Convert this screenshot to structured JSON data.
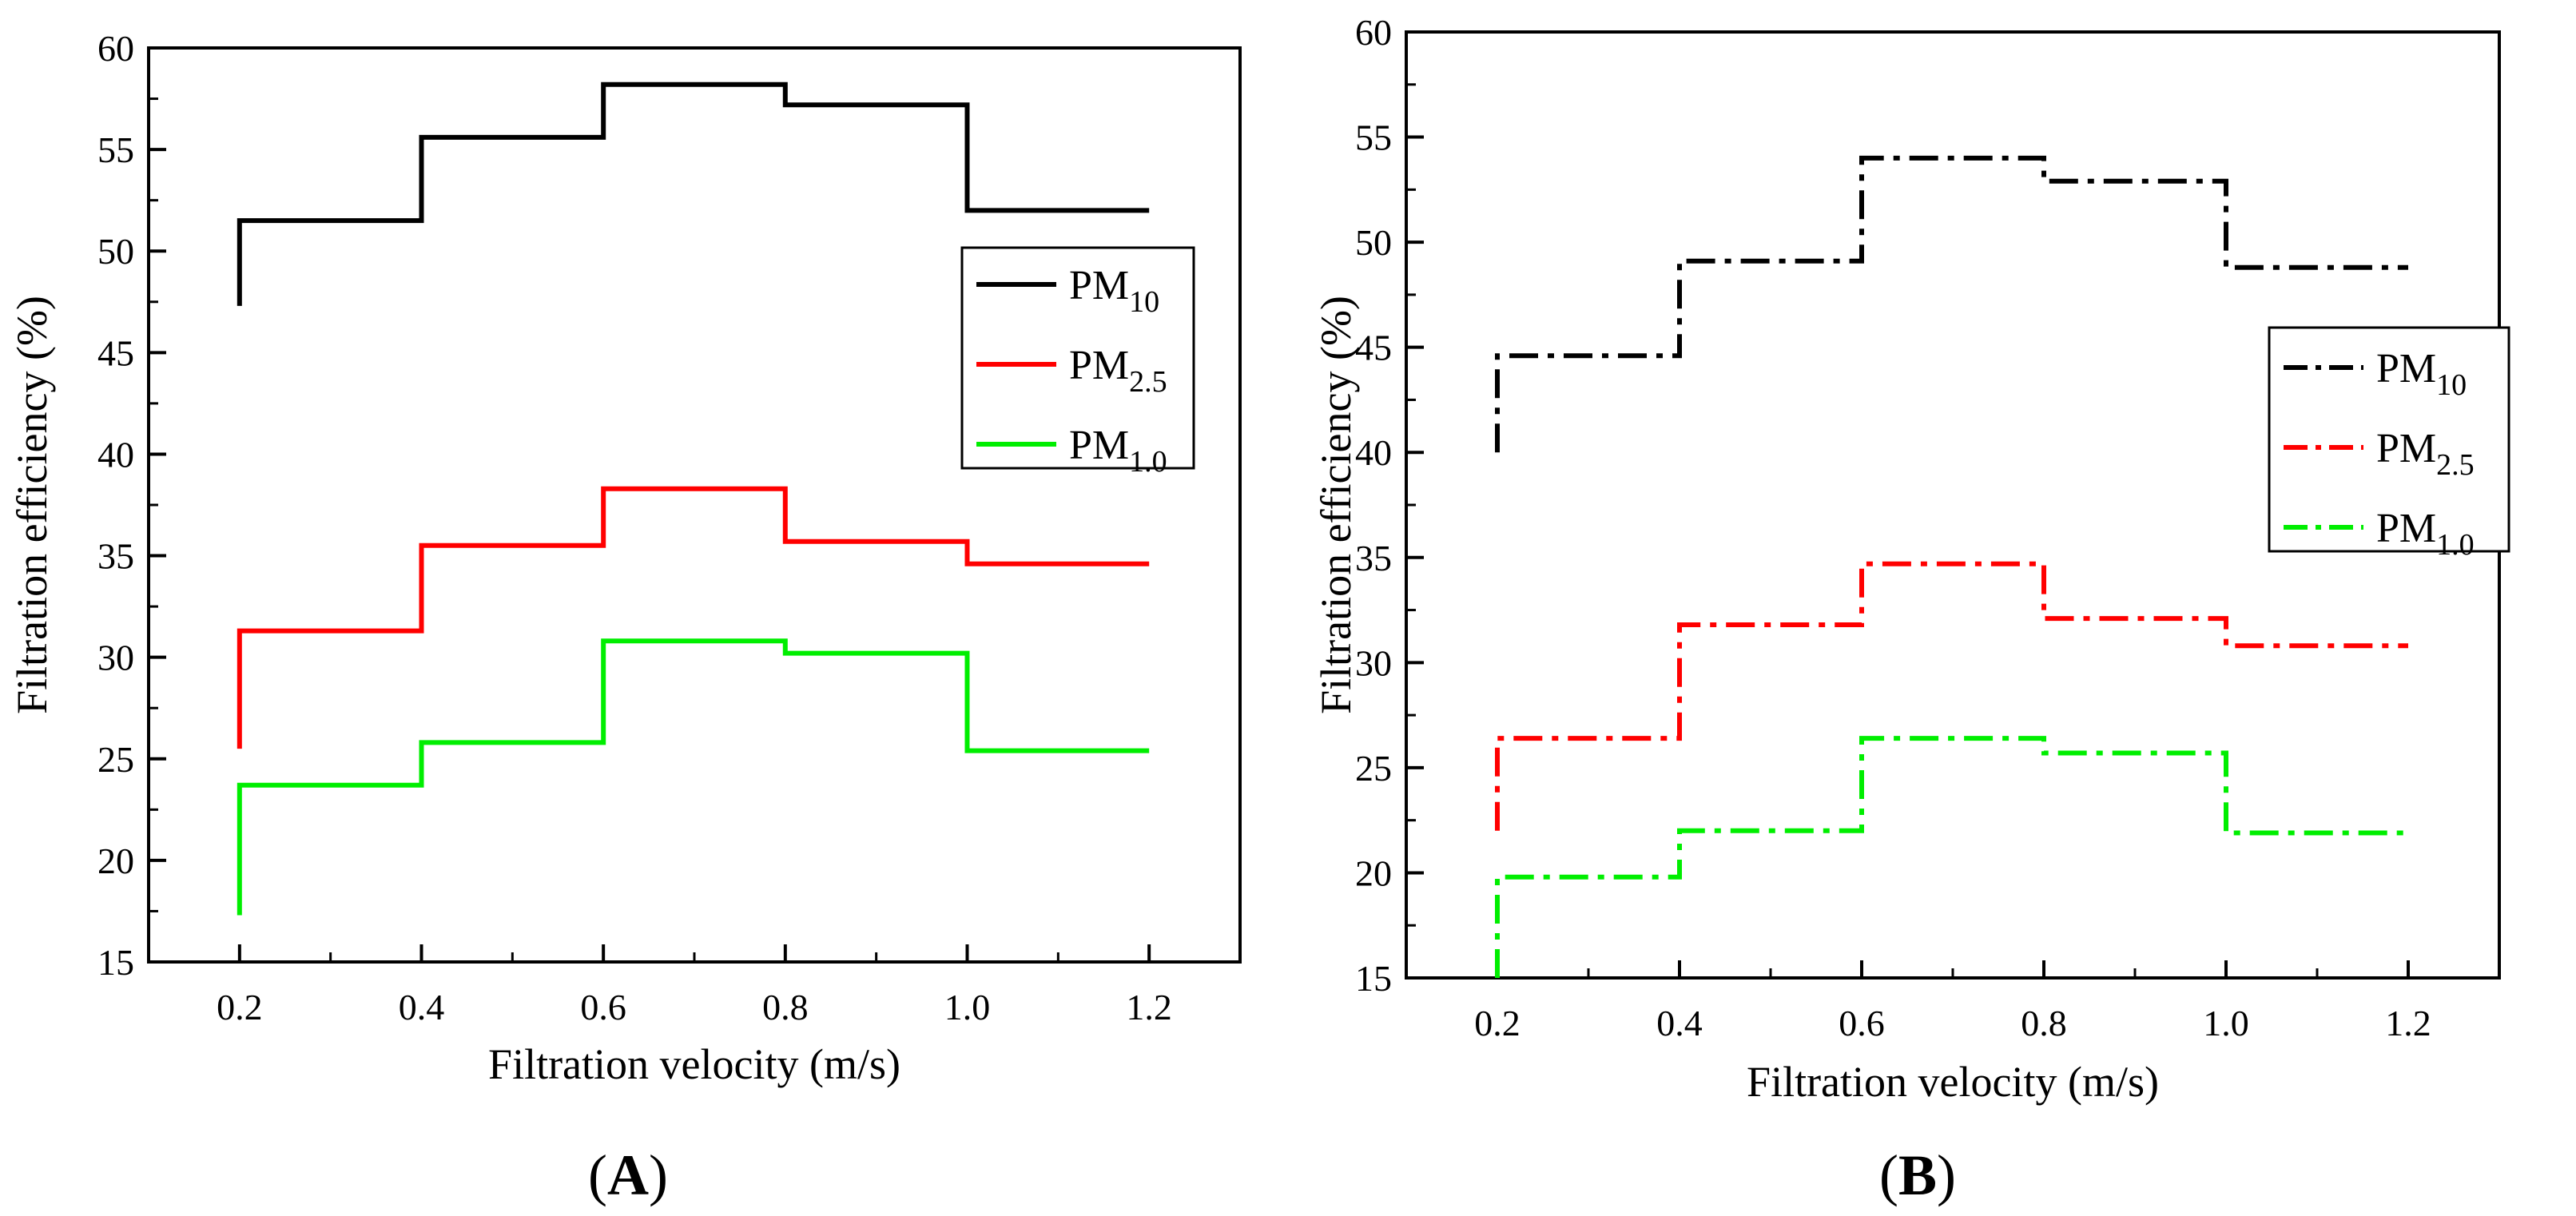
{
  "chart_data": [
    {
      "type": "line",
      "panel_label": "A",
      "xlabel": "Filtration velocity (m/s)",
      "ylabel": "Filtration efficiency (%)",
      "xlim": [
        0.1,
        1.3
      ],
      "ylim": [
        15,
        60
      ],
      "xticks": [
        0.2,
        0.4,
        0.6,
        0.8,
        1.0,
        1.2
      ],
      "xtick_labels": [
        "0.2",
        "0.4",
        "0.6",
        "0.8",
        "1.0",
        "1.2"
      ],
      "yticks": [
        15,
        20,
        25,
        30,
        35,
        40,
        45,
        50,
        55,
        60
      ],
      "ytick_labels": [
        "15",
        "20",
        "25",
        "30",
        "35",
        "40",
        "45",
        "50",
        "55",
        "60"
      ],
      "line_style": "solid",
      "legend_position": "right",
      "series": [
        {
          "name": "PM",
          "sub": "10",
          "color": "#000000",
          "x": [
            0.2,
            0.2,
            0.4,
            0.4,
            0.6,
            0.6,
            0.8,
            0.8,
            1.0,
            1.0,
            1.2
          ],
          "y": [
            47.3,
            51.5,
            51.5,
            55.6,
            55.6,
            58.2,
            58.2,
            57.2,
            57.2,
            52.0,
            52.0
          ]
        },
        {
          "name": "PM",
          "sub": "2.5",
          "color": "#ff0000",
          "x": [
            0.2,
            0.2,
            0.4,
            0.4,
            0.6,
            0.6,
            0.8,
            0.8,
            1.0,
            1.0,
            1.2
          ],
          "y": [
            25.5,
            31.3,
            31.3,
            35.5,
            35.5,
            38.3,
            38.3,
            35.7,
            35.7,
            34.6,
            34.6
          ]
        },
        {
          "name": "PM",
          "sub": "1.0",
          "color": "#00ee00",
          "x": [
            0.2,
            0.2,
            0.4,
            0.4,
            0.6,
            0.6,
            0.8,
            0.8,
            1.0,
            1.0,
            1.2
          ],
          "y": [
            17.3,
            23.7,
            23.7,
            25.8,
            25.8,
            30.8,
            30.8,
            30.2,
            30.2,
            25.4,
            25.4
          ]
        }
      ]
    },
    {
      "type": "line",
      "panel_label": "B",
      "xlabel": "Filtration velocity (m/s)",
      "ylabel": "Filtration efficiency (%)",
      "xlim": [
        0.1,
        1.3
      ],
      "ylim": [
        15,
        60
      ],
      "xticks": [
        0.2,
        0.4,
        0.6,
        0.8,
        1.0,
        1.2
      ],
      "xtick_labels": [
        "0.2",
        "0.4",
        "0.6",
        "0.8",
        "1.0",
        "1.2"
      ],
      "yticks": [
        15,
        20,
        25,
        30,
        35,
        40,
        45,
        50,
        55,
        60
      ],
      "ytick_labels": [
        "15",
        "20",
        "25",
        "30",
        "35",
        "40",
        "45",
        "50",
        "55",
        "60"
      ],
      "line_style": "dash-dot",
      "legend_position": "right",
      "series": [
        {
          "name": "PM",
          "sub": "10",
          "color": "#000000",
          "x": [
            0.2,
            0.2,
            0.4,
            0.4,
            0.6,
            0.6,
            0.8,
            0.8,
            1.0,
            1.0,
            1.2
          ],
          "y": [
            40.0,
            44.6,
            44.6,
            49.1,
            49.1,
            54.0,
            54.0,
            52.9,
            52.9,
            48.8,
            48.8
          ]
        },
        {
          "name": "PM",
          "sub": "2.5",
          "color": "#ff0000",
          "x": [
            0.2,
            0.2,
            0.4,
            0.4,
            0.6,
            0.6,
            0.8,
            0.8,
            1.0,
            1.0,
            1.2
          ],
          "y": [
            22.0,
            26.4,
            26.4,
            31.8,
            31.8,
            34.7,
            34.7,
            32.1,
            32.1,
            30.8,
            30.8
          ]
        },
        {
          "name": "PM",
          "sub": "1.0",
          "color": "#00ee00",
          "x": [
            0.2,
            0.2,
            0.4,
            0.4,
            0.6,
            0.6,
            0.8,
            0.8,
            1.0,
            1.0,
            1.2
          ],
          "y": [
            15.0,
            19.8,
            19.8,
            22.0,
            22.0,
            26.4,
            26.4,
            25.7,
            25.7,
            21.9,
            21.9
          ]
        }
      ]
    }
  ]
}
